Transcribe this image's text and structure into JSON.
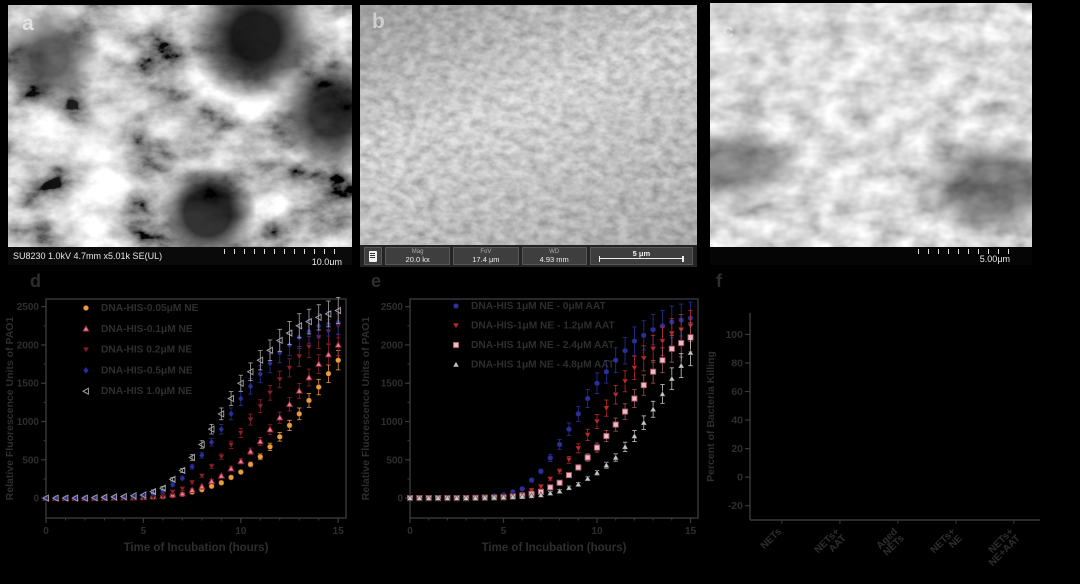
{
  "figure": {
    "background": "#000000",
    "text_color": "#2e2e2e",
    "axis_color": "#3a3a3a"
  },
  "panels": {
    "a": {
      "label": "a",
      "footer": "SU8230 1.0kV 4.7mm x5.01k SE(UL)",
      "scale": "10.0μm",
      "description": "SEM micrograph of fibrous NET-like network"
    },
    "b": {
      "label": "b",
      "mag_label": "Mag",
      "mag_value": "20.0 kx",
      "fov_label": "FoV",
      "fov_value": "17.4 μm",
      "wd_label": "WD",
      "wd_value": "4.93 mm",
      "scale": "5 μm",
      "description": "SEM micrograph of rough dense surface"
    },
    "c": {
      "label": "c",
      "scale": "5.00μm",
      "description": "SEM micrograph of rod-shaped bacteria cluster"
    },
    "d": {
      "label": "d"
    },
    "e": {
      "label": "e"
    },
    "f": {
      "label": "f"
    }
  },
  "chart_data": [
    {
      "panel": "d",
      "type": "scatter",
      "xlabel": "Time of Incubation (hours)",
      "ylabel": "Relative Fluorescence Units of PAO1",
      "xlim": [
        0,
        15.4
      ],
      "ylim": [
        -260,
        2600
      ],
      "xticks": [
        0,
        5,
        10,
        15
      ],
      "yticks": [
        0,
        500,
        1000,
        1500,
        2000,
        2500
      ],
      "x_start": 0,
      "x_step": 1,
      "error_fraction": 0.07,
      "legend_position": "upper-left",
      "series": [
        {
          "label": "DNA-HIS-0.05μM NE",
          "marker": "circle",
          "color": "#F09A3E",
          "values": [
            0,
            0,
            0,
            0,
            5,
            10,
            20,
            50,
            110,
            200,
            340,
            540,
            800,
            1100,
            1450,
            1800
          ]
        },
        {
          "label": "DNA-HIS-0.1μM NE",
          "marker": "triangle-up",
          "color": "#E87F96",
          "edge": "#8C2030",
          "values": [
            0,
            0,
            0,
            0,
            5,
            10,
            30,
            60,
            150,
            290,
            480,
            740,
            1050,
            1400,
            1750,
            2000
          ]
        },
        {
          "label": "DNA-HIS 0.2μM NE",
          "marker": "triangle-down",
          "color": "#8E1E28",
          "values": [
            0,
            0,
            0,
            5,
            10,
            20,
            40,
            120,
            290,
            540,
            850,
            1200,
            1550,
            1850,
            2100,
            2250
          ]
        },
        {
          "label": "DNA-HIS-0.5μM NE",
          "marker": "diamond",
          "color": "#2B2F9C",
          "values": [
            0,
            0,
            0,
            5,
            15,
            30,
            90,
            260,
            560,
            900,
            1300,
            1620,
            1900,
            2100,
            2250,
            2300
          ]
        },
        {
          "label": "DNA-HIS 1.0μM NE",
          "marker": "triangle-left",
          "color": "#A8A8A8",
          "open": true,
          "values": [
            0,
            0,
            0,
            10,
            20,
            40,
            130,
            360,
            700,
            1100,
            1500,
            1800,
            2060,
            2250,
            2360,
            2450
          ]
        }
      ]
    },
    {
      "panel": "e",
      "type": "scatter",
      "xlabel": "Time of Incubation (hours)",
      "ylabel": "Relative Fluorescence Units of PAO1",
      "xlim": [
        0,
        15.4
      ],
      "ylim": [
        -260,
        2600
      ],
      "xticks": [
        0,
        5,
        10,
        15
      ],
      "yticks": [
        0,
        500,
        1000,
        1500,
        2000,
        2500
      ],
      "x_start": 0,
      "x_step": 1,
      "error_fraction": 0.09,
      "legend_position": "upper-left",
      "series": [
        {
          "label": "DNA-HIS 1μM NE - 0μM AAT",
          "marker": "circle",
          "color": "#2B2F9C",
          "values": [
            0,
            0,
            0,
            5,
            15,
            40,
            120,
            350,
            700,
            1100,
            1500,
            1800,
            2050,
            2200,
            2300,
            2350
          ]
        },
        {
          "label": "DNA-HIS-1μM NE - 1.2μM AAT",
          "marker": "triangle-down",
          "color": "#C22A2A",
          "values": [
            0,
            0,
            0,
            0,
            10,
            20,
            50,
            150,
            350,
            650,
            1000,
            1350,
            1700,
            1950,
            2150,
            2250
          ]
        },
        {
          "label": "DNA-HIS 1μM NE - 2.4μM AAT",
          "marker": "square",
          "color": "#F2B8C6",
          "edge": "#9b5560",
          "values": [
            0,
            0,
            0,
            0,
            5,
            10,
            30,
            80,
            200,
            400,
            660,
            960,
            1300,
            1650,
            1950,
            2100
          ]
        },
        {
          "label": "DNA-HIS 1μM NE - 4.8μM AAT",
          "marker": "triangle-up",
          "color": "#C9C9C9",
          "values": [
            0,
            0,
            0,
            0,
            5,
            10,
            20,
            40,
            90,
            180,
            330,
            530,
            810,
            1160,
            1560,
            1900
          ]
        }
      ]
    },
    {
      "panel": "f",
      "type": "bar",
      "xlabel": "",
      "ylabel": "Percent of Bacteria Killing",
      "ylim": [
        -30,
        115
      ],
      "yticks": [
        -20,
        0,
        20,
        40,
        60,
        80,
        100
      ],
      "categories": [
        "NETs",
        "NETs+\nAAT",
        "Aged\nNETs",
        "NETs+\nNE",
        "NETs+\nNE+AAT"
      ],
      "values": [
        null,
        null,
        null,
        null,
        null
      ],
      "values_visible": false
    }
  ]
}
